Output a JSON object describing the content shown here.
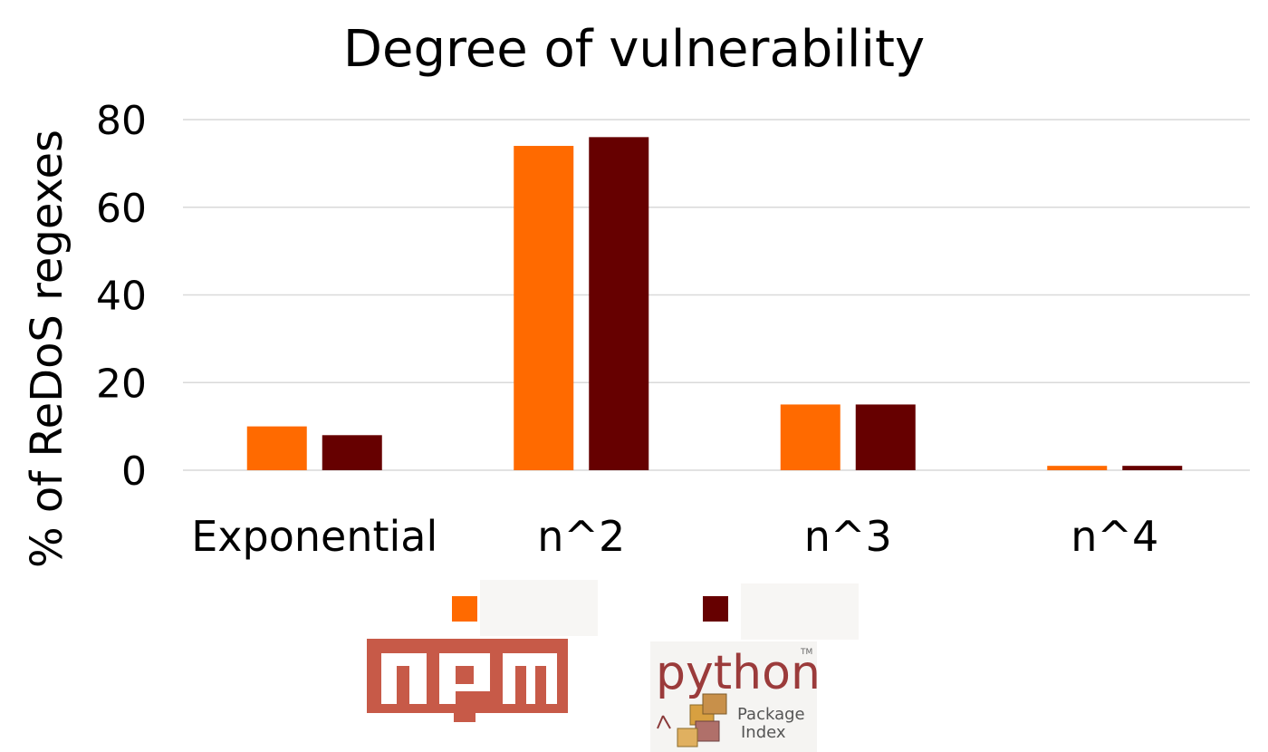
{
  "chart_data": {
    "type": "bar",
    "title": "Degree of vulnerability",
    "xlabel": "",
    "ylabel": "% of ReDoS regexes",
    "categories": [
      "Exponential",
      "n^2",
      "n^3",
      "n^4"
    ],
    "ylim": [
      0,
      80
    ],
    "yticks": [
      "0",
      "20",
      "40",
      "60",
      "80"
    ],
    "grid": true,
    "legend_position": "bottom",
    "series": [
      {
        "name": "npm",
        "color": "#ff6a00",
        "values": [
          10,
          74,
          15,
          1
        ]
      },
      {
        "name": "Python Package Index",
        "color": "#660000",
        "values": [
          8,
          76,
          15,
          1
        ]
      }
    ]
  },
  "legend": {
    "npm_logo_text": "npm",
    "python_logo_text": "python",
    "python_logo_sub1": "Package",
    "python_logo_sub2": "Index",
    "python_logo_tm": "TM"
  },
  "colors": {
    "npm_logo": "#c75a48",
    "python_text": "#9b3b3b",
    "gridline": "#d9d9d9"
  }
}
